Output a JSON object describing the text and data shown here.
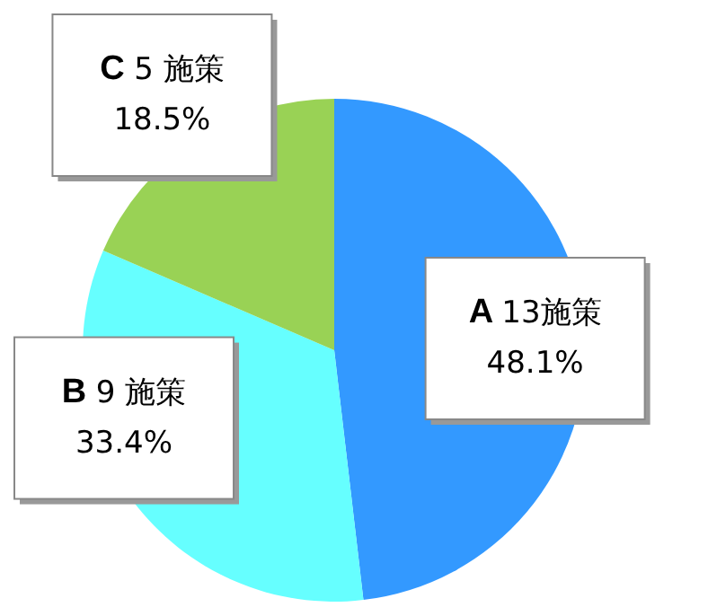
{
  "chart_data": {
    "type": "pie",
    "categories": [
      "A",
      "B",
      "C"
    ],
    "values": [
      13,
      9,
      5
    ],
    "value_labels": [
      "13施策\n48.1%",
      "9 施策\n33.4%",
      "5 施策\n18.5%"
    ],
    "colors": [
      "#3399ff",
      "#66ffff",
      "#99d255"
    ]
  }
}
